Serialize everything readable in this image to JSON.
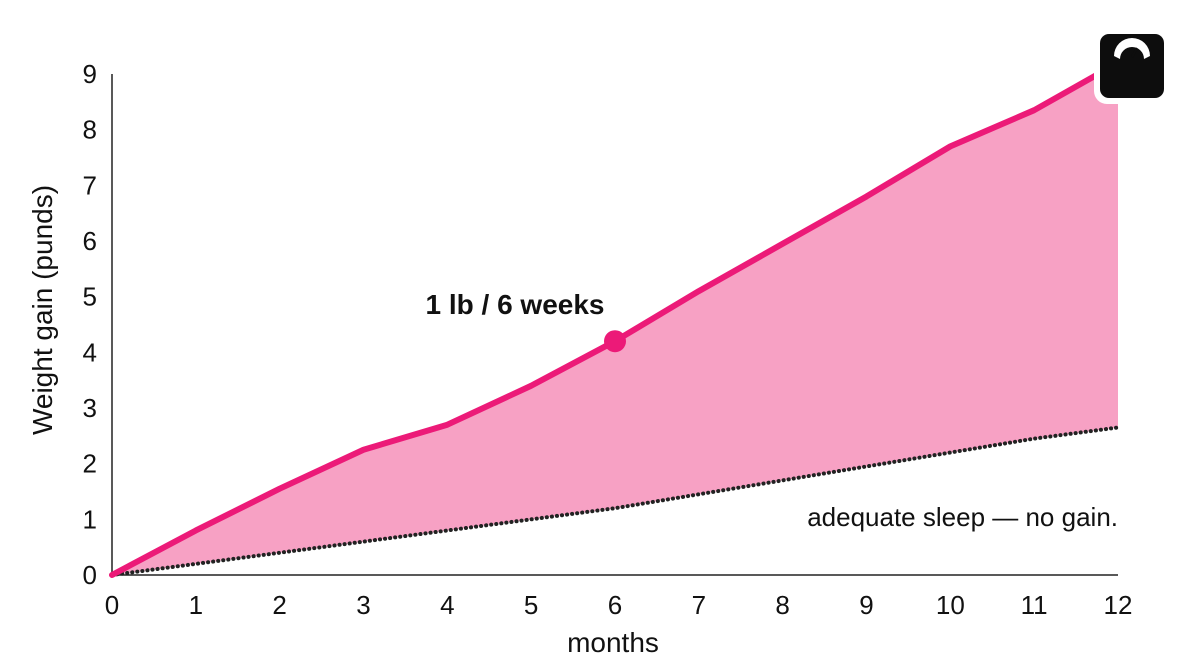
{
  "chart_data": {
    "type": "area",
    "xlabel": "months",
    "ylabel": "Weight gain (punds)",
    "xlim": [
      0,
      12
    ],
    "ylim": [
      0,
      9
    ],
    "x_ticks": [
      "0",
      "1",
      "2",
      "3",
      "4",
      "5",
      "6",
      "7",
      "8",
      "9",
      "10",
      "11",
      "12"
    ],
    "y_ticks": [
      "0",
      "1",
      "2",
      "3",
      "4",
      "5",
      "6",
      "7",
      "8",
      "9"
    ],
    "grid": false,
    "x": [
      0,
      1,
      2,
      3,
      4,
      5,
      6,
      7,
      8,
      9,
      10,
      11,
      12
    ],
    "series": [
      {
        "values": [
          0,
          0.8,
          1.55,
          2.25,
          2.7,
          3.4,
          4.2,
          5.1,
          5.95,
          6.8,
          7.7,
          8.35,
          9.2
        ],
        "color": "#ec1a78",
        "style": "solid"
      },
      {
        "values": [
          0,
          0.2,
          0.4,
          0.6,
          0.8,
          1.0,
          1.2,
          1.45,
          1.7,
          1.95,
          2.2,
          2.45,
          2.65
        ],
        "color": "#222222",
        "style": "dotted"
      }
    ],
    "fill_color": "#f7a1c4",
    "annotations": [
      {
        "text": "1 lb / 6 weeks",
        "x": 6,
        "y": 4.2
      },
      {
        "text": "adequate sleep — no gain."
      }
    ],
    "icon": "scale-icon"
  }
}
